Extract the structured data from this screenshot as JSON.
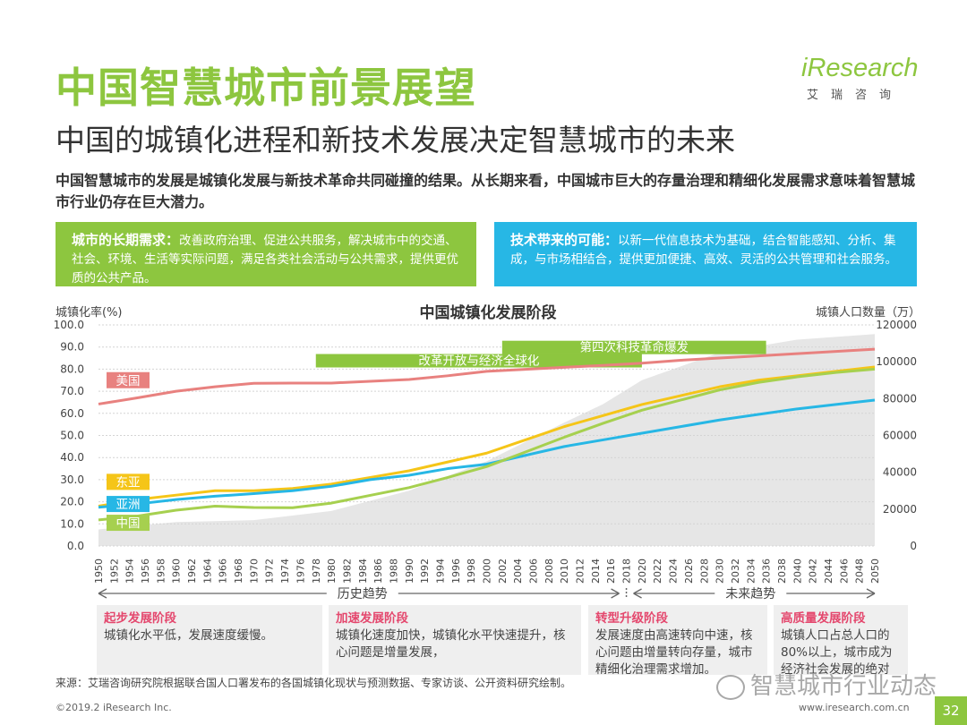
{
  "header": {
    "title": "中国智慧城市前景展望",
    "subtitle": "中国的城镇化进程和新技术发展决定智慧城市的未来"
  },
  "logo": {
    "brand": "iResearch",
    "chinese": "艾瑞咨询"
  },
  "intro": "中国智慧城市的发展是城镇化发展与新技术革命共同碰撞的结果。从长期来看，中国城市巨大的存量治理和精细化发展需求意味着智慧城市行业仍存在巨大潜力。",
  "boxes": {
    "left": {
      "lead": "城市的长期需求：",
      "text": "改善政府治理、促进公共服务，解决城市中的交通、社会、环境、生活等实际问题，满足各类社会活动与公共需求，提供更优质的公共产品。"
    },
    "right": {
      "lead": "技术带来的可能：",
      "text": "以新一代信息技术为基础，结合智能感知、分析、集成，与市场相结合，提供更加便捷、高效、灵活的公共管理和社会服务。"
    }
  },
  "chart_data": {
    "type": "line",
    "title": "中国城镇化发展阶段",
    "ylabel": "城镇化率(%)",
    "y2label": "城镇人口数量（万）",
    "ylim": [
      0,
      100
    ],
    "y2lim": [
      0,
      120000
    ],
    "yticks": [
      "0.0",
      "10.0",
      "20.0",
      "30.0",
      "40.0",
      "50.0",
      "60.0",
      "70.0",
      "80.0",
      "90.0",
      "100.0"
    ],
    "y2ticks": [
      "0",
      "20000",
      "40000",
      "60000",
      "80000",
      "100000",
      "120000"
    ],
    "categories": [
      "1950",
      "1952",
      "1954",
      "1956",
      "1958",
      "1960",
      "1962",
      "1964",
      "1966",
      "1968",
      "1970",
      "1972",
      "1974",
      "1976",
      "1978",
      "1980",
      "1982",
      "1984",
      "1986",
      "1988",
      "1990",
      "1992",
      "1994",
      "1996",
      "1998",
      "2000",
      "2002",
      "2004",
      "2006",
      "2008",
      "2010",
      "2012",
      "2014",
      "2016",
      "2018",
      "2020",
      "2022",
      "2024",
      "2026",
      "2028",
      "2030",
      "2032",
      "2034",
      "2036",
      "2038",
      "2040",
      "2042",
      "2044",
      "2046",
      "2048",
      "2050"
    ],
    "series": [
      {
        "name": "美国",
        "color": "#e8817f",
        "x": [
          1950,
          1955,
          1960,
          1965,
          1970,
          1975,
          1980,
          1985,
          1990,
          1995,
          2000,
          2005,
          2010,
          2015,
          2020,
          2025,
          2030,
          2035,
          2040,
          2045,
          2050
        ],
        "values": [
          64.2,
          67,
          70,
          72,
          73.6,
          73.7,
          73.7,
          74.5,
          75.3,
          77,
          79,
          79.9,
          80.8,
          81.7,
          82.7,
          84,
          85,
          86,
          87,
          88,
          89
        ]
      },
      {
        "name": "东亚",
        "color": "#f5c518",
        "x": [
          1950,
          1955,
          1960,
          1965,
          1970,
          1975,
          1980,
          1985,
          1990,
          1995,
          2000,
          2005,
          2010,
          2015,
          2020,
          2025,
          2030,
          2035,
          2040,
          2045,
          2050
        ],
        "values": [
          18,
          21,
          23,
          25,
          25,
          26,
          28,
          31,
          34,
          38,
          42,
          48,
          54,
          59,
          64,
          68,
          72,
          75,
          77,
          79,
          81
        ]
      },
      {
        "name": "亚洲",
        "color": "#27b7e5",
        "x": [
          1950,
          1955,
          1960,
          1965,
          1970,
          1975,
          1980,
          1985,
          1990,
          1995,
          2000,
          2005,
          2010,
          2015,
          2020,
          2025,
          2030,
          2035,
          2040,
          2045,
          2050
        ],
        "values": [
          17.5,
          19,
          21,
          22.5,
          23.7,
          25,
          27,
          30,
          32,
          35,
          37,
          41,
          45,
          48,
          51,
          54,
          57,
          59.5,
          62,
          64,
          66
        ]
      },
      {
        "name": "中国",
        "color": "#a6d04f",
        "x": [
          1950,
          1955,
          1960,
          1965,
          1970,
          1975,
          1980,
          1985,
          1990,
          1995,
          2000,
          2005,
          2010,
          2015,
          2020,
          2025,
          2030,
          2035,
          2040,
          2045,
          2050
        ],
        "values": [
          11.8,
          13.5,
          16.2,
          18,
          17.4,
          17.3,
          19.4,
          22.9,
          26.4,
          31,
          35.9,
          42.5,
          49.2,
          55.5,
          61.4,
          66,
          70.6,
          74,
          76.5,
          78.5,
          80
        ]
      }
    ],
    "area": {
      "name": "城镇人口数量",
      "axis": "y2",
      "color": "#e6e6e6",
      "x": [
        1950,
        1960,
        1970,
        1980,
        1990,
        2000,
        2010,
        2015,
        2020,
        2030,
        2040,
        2050
      ],
      "values": [
        9000,
        13000,
        14000,
        19000,
        30000,
        46000,
        67000,
        77000,
        90000,
        105000,
        112000,
        115000
      ]
    },
    "bands": [
      {
        "label": "改革开放与经济全球化",
        "start": 1978,
        "end": 2020,
        "level": 84
      },
      {
        "label": "第四次科技革命爆发",
        "start": 2002,
        "end": 2036,
        "level": 90
      }
    ],
    "timeline": {
      "past": "历史趋势",
      "future": "未来趋势",
      "divider": 2018
    }
  },
  "stages": [
    {
      "title": "起步发展阶段",
      "text": "城镇化水平低，发展速度缓慢。"
    },
    {
      "title": "加速发展阶段",
      "text": "城镇化速度加快，城镇化水平快速提升，核心问题是增量发展，"
    },
    {
      "title": "转型升级阶段",
      "text": "发展速度由高速转向中速，核心问题由增量转向存量，城市精细化治理需求增加。"
    },
    {
      "title": "高质量发展阶段",
      "text": "城镇人口占总人口的80%以上，城市成为经济社会发展的绝对"
    }
  ],
  "footer": {
    "source": "来源：艾瑞咨询研究院根据联合国人口署发布的各国城镇化现状与预测数据、专家访谈、公开资料研究绘制。",
    "copyright": "©2019.2 iResearch Inc.",
    "website": "www.iresearch.com.cn",
    "page": "32",
    "watermark": "智慧城市行业动态"
  }
}
